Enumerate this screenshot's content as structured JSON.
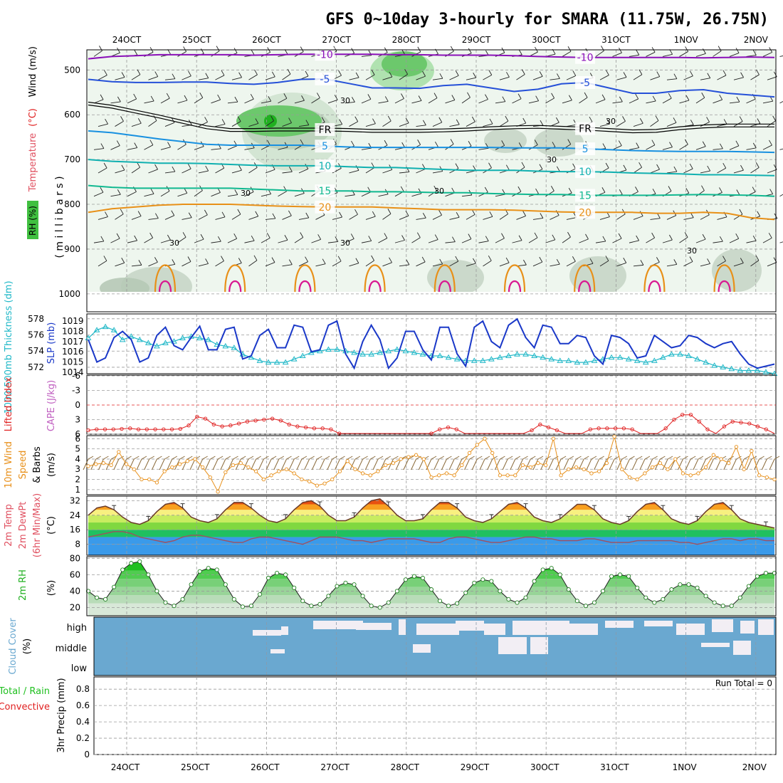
{
  "title": "GFS 0~10day 3-hourly for SMARA (11.75W, 26.75N)",
  "dates": [
    "24OCT",
    "25OCT",
    "26OCT",
    "27OCT",
    "28OCT",
    "29OCT",
    "30OCT",
    "31OCT",
    "1NOV",
    "2NOV"
  ],
  "colors": {
    "purple": "#8a10b8",
    "blue": "#2550d8",
    "lightblue": "#1890e0",
    "teal": "#10b0b0",
    "green": "#10b890",
    "orange": "#e89018",
    "magenta": "#d81890",
    "rh": "#20c020",
    "slp": "#1a38c8",
    "thick": "#20b8c8",
    "li": "#e02020",
    "cape": "#c060c0",
    "wind": "#e8901a",
    "cloud": "#6aa8d0",
    "precip": "#20c020",
    "conv": "#e02020"
  },
  "chart_data": [
    {
      "type": "contour",
      "panel": "upper-air",
      "ylabel_parts": [
        "RH (%)",
        "Temperature",
        "(°C)",
        "Wind",
        "(m/s)"
      ],
      "ylabel_units": "( m i l l i b a r s )",
      "yticks": [
        500,
        600,
        700,
        800,
        900,
        1000
      ],
      "ylim": [
        455,
        1040
      ],
      "isotherms": [
        {
          "label": "-10",
          "color": "purple",
          "values": [
            475,
            470,
            468,
            466,
            466,
            466,
            466,
            467,
            466,
            465,
            465,
            465,
            465,
            466,
            466,
            467,
            467,
            467,
            468,
            470,
            471,
            472,
            472,
            472,
            472,
            472,
            473,
            472,
            471,
            472
          ]
        },
        {
          "label": "-5",
          "color": "blue",
          "values": [
            521,
            526,
            528,
            528,
            527,
            527,
            530,
            532,
            528,
            521,
            520,
            530,
            540,
            540,
            541,
            535,
            532,
            540,
            548,
            543,
            531,
            528,
            540,
            552,
            552,
            546,
            544,
            552,
            556,
            560
          ]
        },
        {
          "label": "FR",
          "color": "black",
          "values": [
            575,
            582,
            593,
            604,
            616,
            628,
            634,
            634,
            633,
            633,
            633,
            634,
            636,
            636,
            636,
            635,
            633,
            630,
            628,
            627,
            629,
            631,
            634,
            637,
            636,
            630,
            626,
            624,
            624,
            624
          ]
        },
        {
          "label": "5",
          "color": "lightblue",
          "values": [
            636,
            640,
            647,
            654,
            660,
            666,
            668,
            668,
            668,
            668,
            670,
            672,
            673,
            673,
            673,
            673,
            673,
            673,
            674,
            674,
            674,
            676,
            678,
            680,
            681,
            682,
            682,
            682,
            683,
            684
          ]
        },
        {
          "label": "10",
          "color": "teal",
          "values": [
            700,
            704,
            706,
            708,
            708,
            709,
            711,
            713,
            714,
            714,
            714,
            716,
            718,
            718,
            720,
            722,
            724,
            724,
            724,
            726,
            727,
            727,
            728,
            730,
            731,
            732,
            734,
            734,
            735,
            736
          ]
        },
        {
          "label": "15",
          "color": "green",
          "values": [
            758,
            762,
            764,
            764,
            764,
            764,
            764,
            766,
            768,
            770,
            770,
            770,
            772,
            772,
            773,
            774,
            774,
            776,
            777,
            778,
            778,
            780,
            780,
            780,
            780,
            779,
            778,
            779,
            780,
            782
          ]
        },
        {
          "label": "20",
          "color": "orange",
          "values": [
            818,
            810,
            806,
            802,
            800,
            800,
            800,
            802,
            804,
            805,
            806,
            806,
            806,
            808,
            810,
            812,
            812,
            812,
            813,
            815,
            817,
            818,
            818,
            818,
            820,
            820,
            818,
            820,
            830,
            834
          ]
        }
      ],
      "rh_labels": [
        "30",
        "30",
        "30",
        "30",
        "30",
        "30",
        "30",
        "30"
      ]
    },
    {
      "type": "line",
      "panel": "slp-thickness",
      "ylabel_left": "1000-500mb Thickness (dm)",
      "ylabel_right": "SLP (mb)",
      "thickness_ticks": [
        572,
        574,
        576,
        578
      ],
      "slp_ticks": [
        1014,
        1015,
        1016,
        1017,
        1018,
        1019
      ],
      "series": [
        {
          "name": "SLP (mb)",
          "color": "slp",
          "values": [
            1017.2,
            1015.0,
            1015.4,
            1017.4,
            1018.0,
            1017.2,
            1015.0,
            1015.4,
            1017.6,
            1018.4,
            1016.6,
            1016.2,
            1017.4,
            1018.5,
            1016.2,
            1016.2,
            1018.2,
            1018.4,
            1015.3,
            1015.6,
            1017.6,
            1018.2,
            1016.4,
            1016.4,
            1018.6,
            1018.4,
            1016.0,
            1016.2,
            1018.6,
            1019.0,
            1015.8,
            1014.4,
            1017.0,
            1018.6,
            1017.2,
            1014.4,
            1015.4,
            1018.0,
            1018.0,
            1016.2,
            1015.2,
            1018.4,
            1018.4,
            1015.8,
            1014.6,
            1018.4,
            1019.0,
            1017.0,
            1016.4,
            1018.6,
            1019.2,
            1017.4,
            1016.4,
            1018.6,
            1018.4,
            1016.8,
            1016.8,
            1017.6,
            1017.4,
            1015.6,
            1014.8,
            1017.6,
            1017.4,
            1016.8,
            1015.4,
            1015.6,
            1017.6,
            1017.0,
            1016.4,
            1016.6,
            1017.6,
            1017.4,
            1016.8,
            1016.4,
            1016.8,
            1017.0,
            1015.8,
            1014.8,
            1014.4,
            1014.6,
            1014.8
          ]
        },
        {
          "name": "Thickness (dm)",
          "color": "thick",
          "values": [
            575.6,
            576.6,
            577.0,
            576.6,
            575.4,
            575.8,
            575.4,
            575.0,
            574.6,
            575.0,
            575.2,
            575.6,
            575.8,
            575.6,
            575.4,
            574.8,
            574.6,
            574.4,
            573.6,
            573.2,
            572.8,
            572.6,
            572.6,
            572.6,
            573.0,
            573.4,
            573.8,
            574.0,
            574.2,
            574.2,
            574.0,
            573.8,
            573.6,
            573.6,
            573.8,
            574.0,
            574.2,
            574.0,
            573.8,
            573.6,
            573.4,
            573.4,
            573.2,
            573.0,
            572.8,
            572.8,
            572.8,
            573.0,
            573.2,
            573.4,
            573.6,
            573.6,
            573.4,
            573.2,
            573.0,
            572.8,
            572.8,
            572.6,
            572.6,
            572.8,
            573.0,
            573.2,
            573.2,
            573.0,
            572.8,
            572.6,
            572.8,
            573.2,
            573.6,
            573.6,
            573.4,
            573.0,
            572.6,
            572.2,
            572.0,
            571.8,
            571.6,
            571.6,
            571.6,
            571.4,
            571.2
          ]
        }
      ]
    },
    {
      "type": "line",
      "panel": "stability",
      "ylabel_left": "Lifted Index",
      "ylabel_right": "CAPE (J/kg)",
      "yticks": [
        -6,
        -3,
        0,
        3,
        6
      ],
      "series": [
        {
          "name": "Lifted Index",
          "color": "li",
          "values": [
            5.2,
            5.0,
            5.0,
            5.0,
            4.9,
            4.8,
            5.0,
            5.0,
            5.0,
            5.0,
            5.0,
            4.9,
            4.2,
            2.4,
            2.8,
            4.0,
            4.4,
            4.2,
            3.8,
            3.4,
            3.2,
            3.0,
            2.8,
            3.2,
            4.0,
            4.4,
            4.6,
            4.8,
            4.8,
            5.0,
            6.2,
            6.5,
            6.5,
            6.5,
            6.5,
            6.5,
            6.5,
            6.5,
            6.5,
            6.5,
            6.5,
            6.2,
            5.0,
            4.6,
            5.0,
            6.5,
            6.5,
            6.5,
            6.5,
            6.5,
            6.5,
            6.5,
            6.5,
            5.2,
            4.0,
            4.6,
            5.2,
            6.5,
            6.5,
            6.5,
            5.0,
            4.8,
            4.8,
            4.8,
            4.8,
            5.0,
            6.5,
            6.5,
            6.5,
            4.8,
            3.0,
            2.0,
            2.0,
            3.4,
            5.0,
            6.5,
            4.4,
            3.4,
            3.6,
            3.8,
            4.4,
            5.0,
            6.5
          ]
        }
      ]
    },
    {
      "type": "line",
      "panel": "wind",
      "ylabel_parts": [
        "10m Wind",
        "Speed",
        "& Barbs",
        "(m/s)"
      ],
      "yticks": [
        1,
        2,
        3,
        4,
        5,
        6
      ],
      "series": [
        {
          "name": "Speed (m/s)",
          "color": "wind",
          "values": [
            3.3,
            3.5,
            3.6,
            3.4,
            4.7,
            3.5,
            3.0,
            2.0,
            2.0,
            1.7,
            2.8,
            3.2,
            3.5,
            3.8,
            4.0,
            3.2,
            2.2,
            0.8,
            2.7,
            3.4,
            3.6,
            3.2,
            2.8,
            2.0,
            2.4,
            2.8,
            3.0,
            2.6,
            2.0,
            1.8,
            1.4,
            1.6,
            2.0,
            2.8,
            3.8,
            3.0,
            2.6,
            2.4,
            2.8,
            3.4,
            3.6,
            4.0,
            4.2,
            4.4,
            4.0,
            2.2,
            2.4,
            2.6,
            2.4,
            3.4,
            4.6,
            5.4,
            6.0,
            4.6,
            2.4,
            2.4,
            2.4,
            3.4,
            3.2,
            3.6,
            3.4,
            6.0,
            2.4,
            3.0,
            3.2,
            3.0,
            2.6,
            2.8,
            3.6,
            6.2,
            3.0,
            2.2,
            2.0,
            2.6,
            3.2,
            3.6,
            3.0,
            4.0,
            2.6,
            2.4,
            2.6,
            3.2,
            4.4,
            4.0,
            3.6,
            5.2,
            3.0,
            4.8,
            2.4,
            2.2,
            2.0
          ]
        }
      ]
    },
    {
      "type": "area",
      "panel": "temperature",
      "ylabel_parts": [
        "2m Temp",
        "2m DewPt",
        "(6hr Min/Max)"
      ],
      "ylabel_units": "(°C)",
      "yticks": [
        8,
        16,
        24,
        32
      ],
      "series": [
        {
          "name": "2m Temp",
          "values": [
            24,
            28,
            29,
            27,
            23,
            20,
            19,
            21,
            26,
            30,
            31,
            28,
            23,
            21,
            20,
            22,
            27,
            31,
            31,
            28,
            24,
            21,
            20,
            22,
            27,
            31,
            32,
            29,
            24,
            21,
            21,
            23,
            28,
            32,
            33,
            29,
            24,
            21,
            21,
            22,
            27,
            31,
            31,
            28,
            23,
            21,
            20,
            22,
            26,
            30,
            31,
            28,
            23,
            21,
            20,
            22,
            26,
            30,
            30,
            27,
            22,
            20,
            19,
            21,
            26,
            30,
            31,
            27,
            22,
            20,
            19,
            21,
            26,
            30,
            31,
            27,
            22,
            20,
            19,
            18,
            17
          ]
        },
        {
          "name": "2m DewPt",
          "values": [
            12,
            13,
            14,
            15,
            15,
            14,
            12,
            11,
            10,
            9,
            10,
            12,
            13,
            13,
            12,
            11,
            10,
            9,
            9,
            11,
            12,
            12,
            11,
            10,
            9,
            8,
            10,
            12,
            12,
            12,
            11,
            10,
            10,
            9,
            10,
            11,
            11,
            11,
            11,
            10,
            9,
            9,
            11,
            12,
            12,
            11,
            10,
            9,
            9,
            10,
            11,
            12,
            12,
            11,
            11,
            10,
            10,
            10,
            11,
            11,
            10,
            9,
            9,
            9,
            10,
            10,
            10,
            10,
            10,
            9,
            9,
            8,
            9,
            10,
            11,
            11,
            10,
            11,
            11,
            10,
            10
          ]
        }
      ]
    },
    {
      "type": "area",
      "panel": "rh",
      "ylabel": "2m RH",
      "ylabel_units": "(%)",
      "yticks": [
        20,
        40,
        60,
        80
      ],
      "series": [
        {
          "name": "2m RH",
          "values": [
            40,
            32,
            30,
            45,
            66,
            74,
            76,
            60,
            40,
            26,
            22,
            30,
            48,
            64,
            68,
            66,
            48,
            30,
            21,
            22,
            36,
            56,
            62,
            60,
            44,
            28,
            22,
            24,
            34,
            46,
            50,
            48,
            34,
            22,
            20,
            26,
            40,
            54,
            58,
            56,
            42,
            28,
            22,
            25,
            38,
            50,
            54,
            52,
            40,
            30,
            26,
            32,
            52,
            66,
            68,
            60,
            42,
            28,
            22,
            26,
            40,
            58,
            60,
            58,
            44,
            32,
            26,
            30,
            42,
            48,
            48,
            44,
            34,
            26,
            22,
            22,
            32,
            46,
            58,
            62,
            62
          ]
        }
      ]
    },
    {
      "type": "heatmap",
      "panel": "cloud-cover",
      "ylabel_parts": [
        "Cloud Cover",
        "(%)"
      ],
      "levels": [
        "high",
        "middle",
        "low"
      ]
    },
    {
      "type": "bar",
      "panel": "precip",
      "ylabel_left": "Total / Rain",
      "ylabel_left2": "Convective",
      "ylabel": "3hr Precip (mm)",
      "yticks": [
        0,
        0.2,
        0.4,
        0.6,
        0.8
      ],
      "annotation": "Run Total = 0",
      "values": []
    }
  ]
}
